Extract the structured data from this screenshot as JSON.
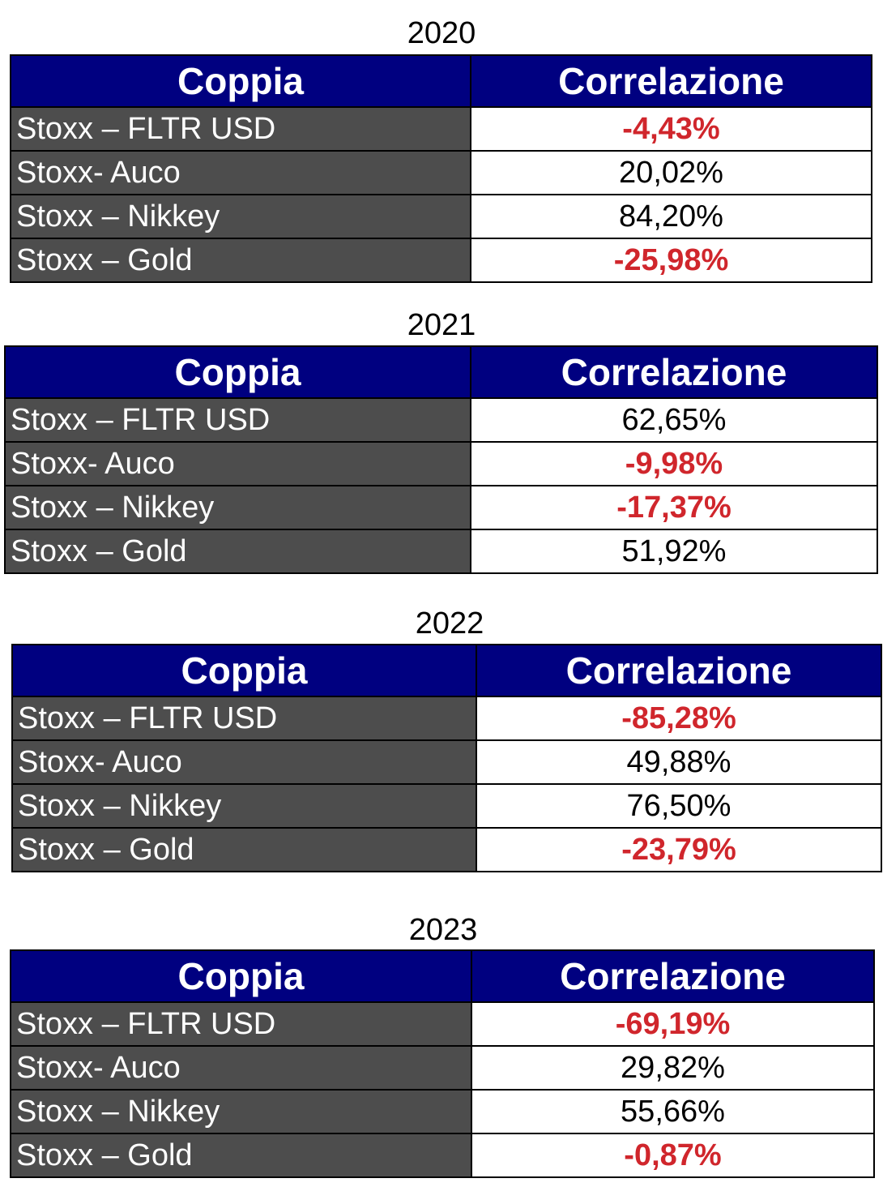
{
  "header": {
    "col_pair": "Coppia",
    "col_corr": "Correlazione"
  },
  "tables": [
    {
      "year": "2020",
      "rows": [
        {
          "pair": "Stoxx – FLTR USD",
          "value": "-4,43%",
          "negative": true
        },
        {
          "pair": "Stoxx- Auco",
          "value": "20,02%",
          "negative": false
        },
        {
          "pair": "Stoxx – Nikkey",
          "value": "84,20%",
          "negative": false
        },
        {
          "pair": "Stoxx – Gold",
          "value": "-25,98%",
          "negative": true
        }
      ]
    },
    {
      "year": "2021",
      "rows": [
        {
          "pair": "Stoxx – FLTR USD",
          "value": "62,65%",
          "negative": false
        },
        {
          "pair": "Stoxx- Auco",
          "value": "-9,98%",
          "negative": true
        },
        {
          "pair": "Stoxx – Nikkey",
          "value": "-17,37%",
          "negative": true
        },
        {
          "pair": "Stoxx – Gold",
          "value": "51,92%",
          "negative": false
        }
      ]
    },
    {
      "year": "2022",
      "rows": [
        {
          "pair": "Stoxx – FLTR USD",
          "value": "-85,28%",
          "negative": true
        },
        {
          "pair": "Stoxx- Auco",
          "value": "49,88%",
          "negative": false
        },
        {
          "pair": "Stoxx – Nikkey",
          "value": "76,50%",
          "negative": false
        },
        {
          "pair": "Stoxx – Gold",
          "value": "-23,79%",
          "negative": true
        }
      ]
    },
    {
      "year": "2023",
      "rows": [
        {
          "pair": "Stoxx – FLTR USD",
          "value": "-69,19%",
          "negative": true
        },
        {
          "pair": "Stoxx- Auco",
          "value": "29,82%",
          "negative": false
        },
        {
          "pair": "Stoxx – Nikkey",
          "value": "55,66%",
          "negative": false
        },
        {
          "pair": "Stoxx – Gold",
          "value": "-0,87%",
          "negative": true
        }
      ]
    }
  ]
}
